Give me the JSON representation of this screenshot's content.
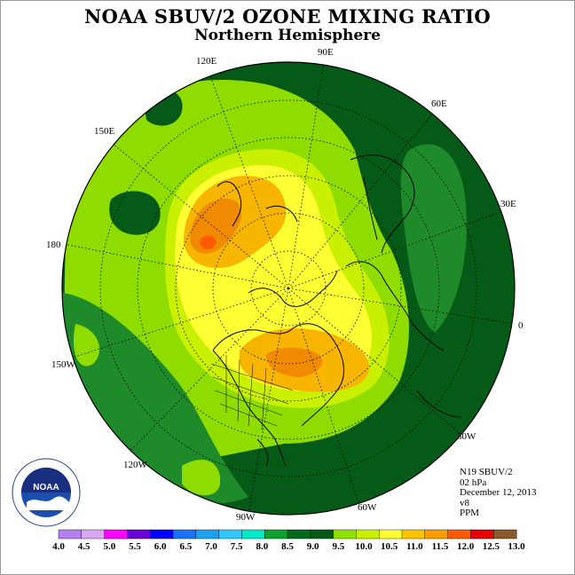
{
  "title": "NOAA SBUV/2 OZONE MIXING RATIO",
  "subtitle": "Northern Hemisphere",
  "longitude_labels": [
    {
      "text": "90E",
      "id": "lon-90e"
    },
    {
      "text": "60E",
      "id": "lon-60e"
    },
    {
      "text": "30E",
      "id": "lon-30e"
    },
    {
      "text": "0",
      "id": "lon-0"
    },
    {
      "text": "30W",
      "id": "lon-30w"
    },
    {
      "text": "60W",
      "id": "lon-60w"
    },
    {
      "text": "90W",
      "id": "lon-90w"
    },
    {
      "text": "120W",
      "id": "lon-120w"
    },
    {
      "text": "150W",
      "id": "lon-150w"
    },
    {
      "text": "180",
      "id": "lon-180"
    },
    {
      "text": "150E",
      "id": "lon-150e"
    },
    {
      "text": "120E",
      "id": "lon-120e"
    }
  ],
  "info": {
    "instrument": "N19 SBUV/2",
    "level": "02 hPa",
    "date": "December 12, 2013",
    "version": "v8",
    "units": "PPM"
  },
  "colorbar": {
    "labels": [
      "4.0",
      "4.5",
      "5.0",
      "5.5",
      "6.0",
      "6.5",
      "7.0",
      "7.5",
      "8.0",
      "8.5",
      "9.0",
      "9.5",
      "10.0",
      "10.5",
      "11.0",
      "11.5",
      "12.0",
      "12.5",
      "13.0"
    ],
    "colors": [
      "#b380f0",
      "#d9a8f5",
      "#ff00ff",
      "#6a00d8",
      "#0000ff",
      "#1a72ff",
      "#1ea0f0",
      "#30c8ff",
      "#00e8c8",
      "#0fa030",
      "#066a1e",
      "#055a18",
      "#8fe000",
      "#c8f000",
      "#ffff33",
      "#ffc400",
      "#ff9d00",
      "#ff5a00",
      "#e60000",
      "#8b5a2b"
    ]
  },
  "logo": {
    "text": "NOAA"
  },
  "colors": {
    "dark_green": "#055a18",
    "mid_green": "#1f8a2a",
    "light_green": "#8fdc00",
    "yellow_green": "#c8f000",
    "yellow": "#ffff33",
    "orange": "#f7b500",
    "dark_orange": "#f08a00",
    "red_orange": "#ff5a00"
  }
}
